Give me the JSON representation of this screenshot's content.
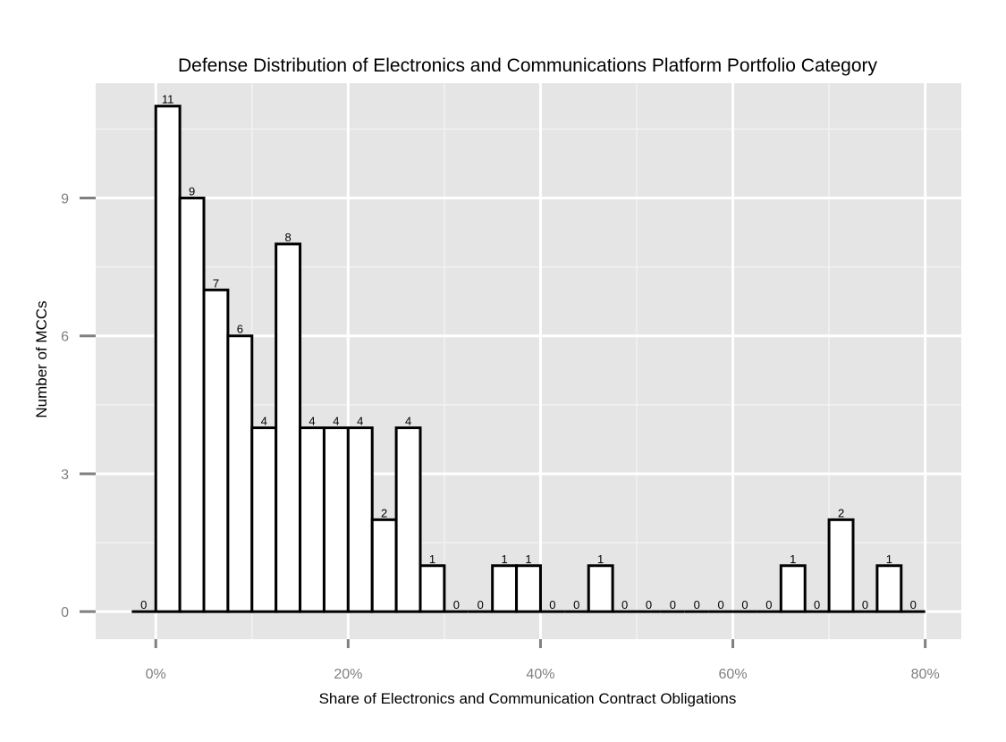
{
  "chart_data": {
    "type": "bar",
    "title": "Defense Distribution of Electronics and Communications Platform Portfolio Category",
    "xlabel": "Share of Electronics and Communication Contract Obligations",
    "ylabel": "Number of MCCs",
    "bin_width": 2.5,
    "bin_centers": [
      -1.25,
      1.25,
      3.75,
      6.25,
      8.75,
      11.25,
      13.75,
      16.25,
      18.75,
      21.25,
      23.75,
      26.25,
      28.75,
      31.25,
      33.75,
      36.25,
      38.75,
      41.25,
      43.75,
      46.25,
      48.75,
      51.25,
      53.75,
      56.25,
      58.75,
      61.25,
      63.75,
      66.25,
      68.75,
      71.25,
      73.75,
      76.25,
      78.75
    ],
    "values": [
      0,
      11,
      9,
      7,
      6,
      4,
      8,
      4,
      4,
      4,
      2,
      4,
      1,
      0,
      0,
      1,
      1,
      0,
      0,
      1,
      0,
      0,
      0,
      0,
      0,
      0,
      0,
      1,
      0,
      2,
      0,
      1,
      0
    ],
    "data_labels": [
      "0",
      "11",
      "9",
      "7",
      "6",
      "4",
      "8",
      "4",
      "4",
      "4",
      "2",
      "4",
      "1",
      "0",
      "0",
      "1",
      "1",
      "0",
      "0",
      "1",
      "0",
      "0",
      "0",
      "0",
      "0",
      "0",
      "0",
      "1",
      "0",
      "2",
      "0",
      "1",
      "0"
    ],
    "xlim": [
      -6.25,
      83.75
    ],
    "ylim": [
      -0.6,
      11.5
    ],
    "x_ticks": [
      0,
      20,
      40,
      60,
      80
    ],
    "x_tick_labels": [
      "0%",
      "20%",
      "40%",
      "60%",
      "80%"
    ],
    "y_ticks": [
      0,
      3,
      6,
      9
    ],
    "y_tick_labels": [
      "0",
      "3",
      "6",
      "9"
    ],
    "grid": true,
    "colors": {
      "panel_background": "#e5e5e5",
      "grid_major": "#ffffff",
      "grid_minor": "#f2f2f2",
      "bar_fill": "#ffffff",
      "bar_stroke": "#000000",
      "tick_text": "#7f7f7f",
      "tick_mark": "#7f7f7f"
    }
  }
}
